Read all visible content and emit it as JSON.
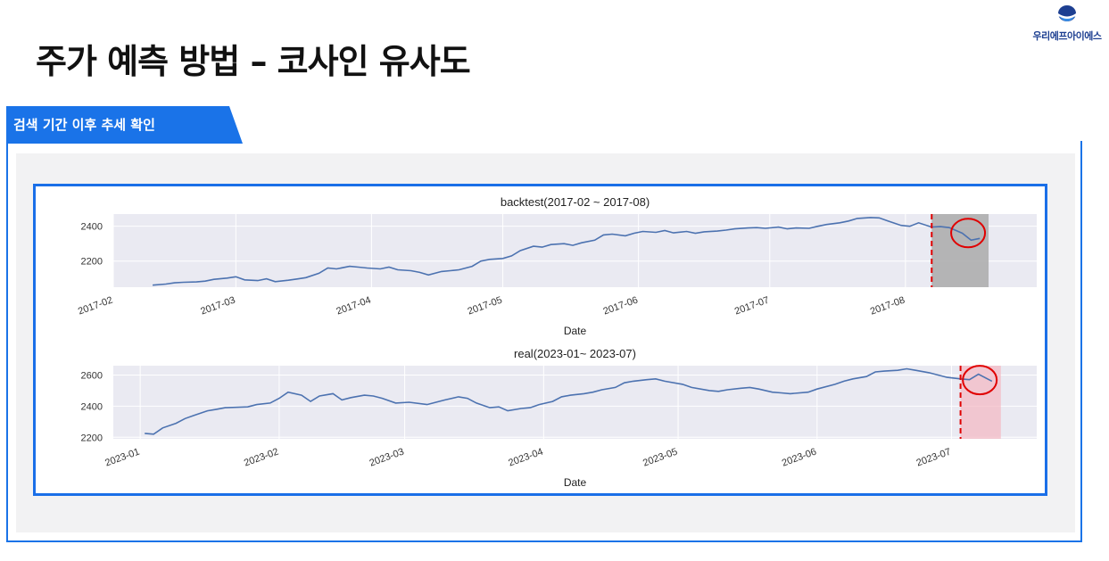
{
  "brand": {
    "name": "우리에프아이에스",
    "logo_color": "#1d3f91"
  },
  "page": {
    "title": "주가 예측 방법 – 코사인 유사도"
  },
  "section": {
    "label": "검색 기간 이후 추세 확인",
    "accent": "#1a73e8"
  },
  "chart_data": [
    {
      "type": "line",
      "title": "backtest(2017-02 ~ 2017-08)",
      "xlabel": "Date",
      "ylabel": "",
      "x_ticks": [
        "2017-02",
        "2017-03",
        "2017-04",
        "2017-05",
        "2017-06",
        "2017-07",
        "2017-08"
      ],
      "y_ticks": [
        2200,
        2400
      ],
      "ylim": [
        2050,
        2470
      ],
      "xlim": [
        "2017-02-01",
        "2017-08-31"
      ],
      "grid": true,
      "series": [
        {
          "color": "#4c72b0",
          "x": [
            "2017-02-10",
            "2017-02-13",
            "2017-02-15",
            "2017-02-17",
            "2017-02-20",
            "2017-02-22",
            "2017-02-24",
            "2017-02-27",
            "2017-03-01",
            "2017-03-03",
            "2017-03-06",
            "2017-03-08",
            "2017-03-10",
            "2017-03-13",
            "2017-03-15",
            "2017-03-17",
            "2017-03-20",
            "2017-03-22",
            "2017-03-24",
            "2017-03-27",
            "2017-03-29",
            "2017-03-31",
            "2017-04-03",
            "2017-04-05",
            "2017-04-07",
            "2017-04-10",
            "2017-04-12",
            "2017-04-14",
            "2017-04-17",
            "2017-04-19",
            "2017-04-21",
            "2017-04-24",
            "2017-04-26",
            "2017-04-28",
            "2017-05-01",
            "2017-05-03",
            "2017-05-05",
            "2017-05-08",
            "2017-05-10",
            "2017-05-12",
            "2017-05-15",
            "2017-05-17",
            "2017-05-19",
            "2017-05-22",
            "2017-05-24",
            "2017-05-26",
            "2017-05-29",
            "2017-05-31",
            "2017-06-02",
            "2017-06-05",
            "2017-06-07",
            "2017-06-09",
            "2017-06-12",
            "2017-06-14",
            "2017-06-16",
            "2017-06-19",
            "2017-06-21",
            "2017-06-23",
            "2017-06-26",
            "2017-06-28",
            "2017-06-30",
            "2017-07-03",
            "2017-07-05",
            "2017-07-07",
            "2017-07-10",
            "2017-07-12",
            "2017-07-14",
            "2017-07-17",
            "2017-07-19",
            "2017-07-21",
            "2017-07-24",
            "2017-07-26",
            "2017-07-28",
            "2017-07-31",
            "2017-08-02",
            "2017-08-04",
            "2017-08-07",
            "2017-08-09",
            "2017-08-11",
            "2017-08-14",
            "2017-08-16",
            "2017-08-18"
          ],
          "y": [
            2062,
            2068,
            2075,
            2078,
            2080,
            2085,
            2095,
            2102,
            2110,
            2092,
            2088,
            2098,
            2082,
            2090,
            2097,
            2105,
            2130,
            2160,
            2155,
            2170,
            2165,
            2160,
            2155,
            2165,
            2150,
            2145,
            2135,
            2120,
            2140,
            2145,
            2150,
            2170,
            2200,
            2210,
            2215,
            2230,
            2260,
            2285,
            2280,
            2295,
            2300,
            2290,
            2305,
            2320,
            2350,
            2355,
            2345,
            2360,
            2370,
            2365,
            2375,
            2362,
            2370,
            2360,
            2368,
            2372,
            2378,
            2385,
            2390,
            2392,
            2388,
            2395,
            2385,
            2390,
            2388,
            2400,
            2410,
            2420,
            2430,
            2445,
            2450,
            2448,
            2430,
            2405,
            2400,
            2420,
            2395,
            2398,
            2392,
            2360,
            2320,
            2330
          ]
        }
      ],
      "annotations": {
        "cutoff_date": "2017-08-07",
        "shade_from": "2017-08-07",
        "shade_to": "2017-08-20",
        "shade_color": "#aaaaaa",
        "cutoff_color": "#e00000"
      }
    },
    {
      "type": "line",
      "title": "real(2023-01~ 2023-07)",
      "xlabel": "Date",
      "ylabel": "",
      "x_ticks": [
        "2023-01",
        "2023-02",
        "2023-03",
        "2023-04",
        "2023-05",
        "2023-06",
        "2023-07"
      ],
      "y_ticks": [
        2200,
        2400,
        2600
      ],
      "ylim": [
        2190,
        2660
      ],
      "xlim": [
        "2022-12-26",
        "2023-07-20"
      ],
      "grid": true,
      "series": [
        {
          "color": "#4c72b0",
          "x": [
            "2023-01-02",
            "2023-01-04",
            "2023-01-06",
            "2023-01-09",
            "2023-01-11",
            "2023-01-13",
            "2023-01-16",
            "2023-01-18",
            "2023-01-20",
            "2023-01-25",
            "2023-01-27",
            "2023-01-30",
            "2023-02-01",
            "2023-02-03",
            "2023-02-06",
            "2023-02-08",
            "2023-02-10",
            "2023-02-13",
            "2023-02-15",
            "2023-02-17",
            "2023-02-20",
            "2023-02-22",
            "2023-02-24",
            "2023-02-27",
            "2023-03-02",
            "2023-03-06",
            "2023-03-08",
            "2023-03-10",
            "2023-03-13",
            "2023-03-15",
            "2023-03-17",
            "2023-03-20",
            "2023-03-22",
            "2023-03-24",
            "2023-03-27",
            "2023-03-29",
            "2023-03-31",
            "2023-04-03",
            "2023-04-05",
            "2023-04-07",
            "2023-04-10",
            "2023-04-12",
            "2023-04-14",
            "2023-04-17",
            "2023-04-19",
            "2023-04-21",
            "2023-04-24",
            "2023-04-26",
            "2023-04-28",
            "2023-05-02",
            "2023-05-04",
            "2023-05-08",
            "2023-05-10",
            "2023-05-12",
            "2023-05-15",
            "2023-05-17",
            "2023-05-19",
            "2023-05-22",
            "2023-05-24",
            "2023-05-26",
            "2023-05-30",
            "2023-06-01",
            "2023-06-05",
            "2023-06-07",
            "2023-06-09",
            "2023-06-12",
            "2023-06-14",
            "2023-06-16",
            "2023-06-19",
            "2023-06-21",
            "2023-06-23",
            "2023-06-26",
            "2023-06-28",
            "2023-06-30",
            "2023-07-03",
            "2023-07-05",
            "2023-07-07",
            "2023-07-10"
          ],
          "y": [
            2225,
            2220,
            2260,
            2290,
            2320,
            2340,
            2370,
            2380,
            2390,
            2395,
            2410,
            2420,
            2450,
            2490,
            2470,
            2430,
            2465,
            2480,
            2440,
            2455,
            2470,
            2465,
            2450,
            2420,
            2425,
            2410,
            2425,
            2440,
            2460,
            2450,
            2420,
            2390,
            2395,
            2370,
            2385,
            2390,
            2410,
            2430,
            2460,
            2470,
            2480,
            2490,
            2505,
            2520,
            2550,
            2560,
            2570,
            2575,
            2560,
            2540,
            2520,
            2500,
            2495,
            2505,
            2515,
            2520,
            2510,
            2490,
            2485,
            2480,
            2490,
            2510,
            2540,
            2560,
            2575,
            2590,
            2620,
            2625,
            2630,
            2640,
            2630,
            2615,
            2600,
            2585,
            2575,
            2570,
            2605,
            2560
          ]
        }
      ],
      "annotations": {
        "cutoff_date": "2023-07-03",
        "shade_from": "2023-07-03",
        "shade_to": "2023-07-12",
        "shade_color": "#f4b6c2",
        "cutoff_color": "#e00000"
      }
    }
  ]
}
